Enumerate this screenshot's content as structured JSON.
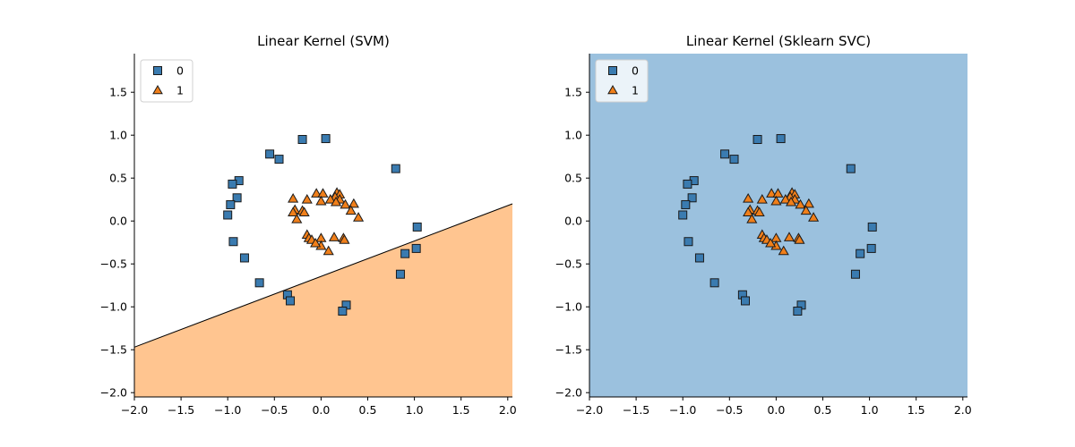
{
  "chart_data": [
    {
      "type": "scatter",
      "title": "Linear Kernel (SVM)",
      "xlabel": "",
      "ylabel": "",
      "xlim": [
        -2.0,
        2.05
      ],
      "ylim": [
        -2.05,
        1.95
      ],
      "xticks": [
        "-2.0",
        "-1.5",
        "-1.0",
        "-0.5",
        "0.0",
        "0.5",
        "1.0",
        "1.5",
        "2.0"
      ],
      "yticks": [
        "-2.0",
        "-1.5",
        "-1.0",
        "-0.5",
        "0.0",
        "0.5",
        "1.0",
        "1.5"
      ],
      "legend_position": "top-left",
      "decision_regions": {
        "boundary_line": [
          [
            -2.0,
            -1.47
          ],
          [
            2.05,
            0.2
          ]
        ],
        "region_above_color": "#ffffff",
        "region_below_color": "#ffc590"
      },
      "series": [
        {
          "name": "0",
          "marker": "square",
          "color": "#3a7bb0",
          "points": [
            [
              -0.2,
              0.95
            ],
            [
              0.05,
              0.96
            ],
            [
              -0.55,
              0.78
            ],
            [
              -0.45,
              0.72
            ],
            [
              0.8,
              0.61
            ],
            [
              -0.88,
              0.47
            ],
            [
              -0.95,
              0.43
            ],
            [
              -0.9,
              0.27
            ],
            [
              -0.97,
              0.19
            ],
            [
              -1.0,
              0.07
            ],
            [
              1.03,
              -0.07
            ],
            [
              -0.94,
              -0.24
            ],
            [
              0.9,
              -0.38
            ],
            [
              1.02,
              -0.32
            ],
            [
              -0.82,
              -0.43
            ],
            [
              0.85,
              -0.62
            ],
            [
              -0.66,
              -0.72
            ],
            [
              -0.36,
              -0.86
            ],
            [
              -0.33,
              -0.93
            ],
            [
              0.27,
              -0.98
            ],
            [
              0.23,
              -1.05
            ]
          ]
        },
        {
          "name": "1",
          "marker": "triangle",
          "color": "#f07f1a",
          "points": [
            [
              -0.05,
              0.32
            ],
            [
              0.02,
              0.32
            ],
            [
              0.17,
              0.33
            ],
            [
              0.2,
              0.31
            ],
            [
              0.15,
              0.28
            ],
            [
              0.2,
              0.25
            ],
            [
              0.1,
              0.25
            ],
            [
              -0.15,
              0.25
            ],
            [
              -0.3,
              0.26
            ],
            [
              0.0,
              0.23
            ],
            [
              0.16,
              0.22
            ],
            [
              0.26,
              0.19
            ],
            [
              0.35,
              0.2
            ],
            [
              -0.28,
              0.13
            ],
            [
              -0.3,
              0.1
            ],
            [
              -0.2,
              0.12
            ],
            [
              -0.18,
              0.1
            ],
            [
              0.32,
              0.12
            ],
            [
              0.4,
              0.04
            ],
            [
              -0.26,
              0.02
            ],
            [
              -0.15,
              -0.16
            ],
            [
              -0.13,
              -0.2
            ],
            [
              -0.1,
              -0.22
            ],
            [
              0.0,
              -0.2
            ],
            [
              0.14,
              -0.19
            ],
            [
              0.24,
              -0.2
            ],
            [
              0.25,
              -0.22
            ],
            [
              0.0,
              -0.29
            ],
            [
              0.08,
              -0.35
            ],
            [
              -0.06,
              -0.26
            ]
          ]
        }
      ]
    },
    {
      "type": "scatter",
      "title": "Linear Kernel (Sklearn SVC)",
      "xlabel": "",
      "ylabel": "",
      "xlim": [
        -2.0,
        2.05
      ],
      "ylim": [
        -2.05,
        1.95
      ],
      "xticks": [
        "-2.0",
        "-1.5",
        "-1.0",
        "-0.5",
        "0.0",
        "0.5",
        "1.0",
        "1.5",
        "2.0"
      ],
      "yticks": [
        "-2.0",
        "-1.5",
        "-1.0",
        "-0.5",
        "0.0",
        "0.5",
        "1.0",
        "1.5"
      ],
      "legend_position": "top-left",
      "decision_regions": {
        "boundary_line": null,
        "background_color": "#9bc1de"
      },
      "series": [
        {
          "name": "0",
          "marker": "square",
          "color": "#3a7bb0",
          "points": [
            [
              -0.2,
              0.95
            ],
            [
              0.05,
              0.96
            ],
            [
              -0.55,
              0.78
            ],
            [
              -0.45,
              0.72
            ],
            [
              0.8,
              0.61
            ],
            [
              -0.88,
              0.47
            ],
            [
              -0.95,
              0.43
            ],
            [
              -0.9,
              0.27
            ],
            [
              -0.97,
              0.19
            ],
            [
              -1.0,
              0.07
            ],
            [
              1.03,
              -0.07
            ],
            [
              -0.94,
              -0.24
            ],
            [
              0.9,
              -0.38
            ],
            [
              1.02,
              -0.32
            ],
            [
              -0.82,
              -0.43
            ],
            [
              0.85,
              -0.62
            ],
            [
              -0.66,
              -0.72
            ],
            [
              -0.36,
              -0.86
            ],
            [
              -0.33,
              -0.93
            ],
            [
              0.27,
              -0.98
            ],
            [
              0.23,
              -1.05
            ]
          ]
        },
        {
          "name": "1",
          "marker": "triangle",
          "color": "#f07f1a",
          "points": [
            [
              -0.05,
              0.32
            ],
            [
              0.02,
              0.32
            ],
            [
              0.17,
              0.33
            ],
            [
              0.2,
              0.31
            ],
            [
              0.15,
              0.28
            ],
            [
              0.2,
              0.25
            ],
            [
              0.1,
              0.25
            ],
            [
              -0.15,
              0.25
            ],
            [
              -0.3,
              0.26
            ],
            [
              0.0,
              0.23
            ],
            [
              0.16,
              0.22
            ],
            [
              0.26,
              0.19
            ],
            [
              0.35,
              0.2
            ],
            [
              -0.28,
              0.13
            ],
            [
              -0.3,
              0.1
            ],
            [
              -0.2,
              0.12
            ],
            [
              -0.18,
              0.1
            ],
            [
              0.32,
              0.12
            ],
            [
              0.4,
              0.04
            ],
            [
              -0.26,
              0.02
            ],
            [
              -0.15,
              -0.16
            ],
            [
              -0.13,
              -0.2
            ],
            [
              -0.1,
              -0.22
            ],
            [
              0.0,
              -0.2
            ],
            [
              0.14,
              -0.19
            ],
            [
              0.24,
              -0.2
            ],
            [
              0.25,
              -0.22
            ],
            [
              0.0,
              -0.29
            ],
            [
              0.08,
              -0.35
            ],
            [
              -0.06,
              -0.26
            ]
          ]
        }
      ]
    }
  ]
}
